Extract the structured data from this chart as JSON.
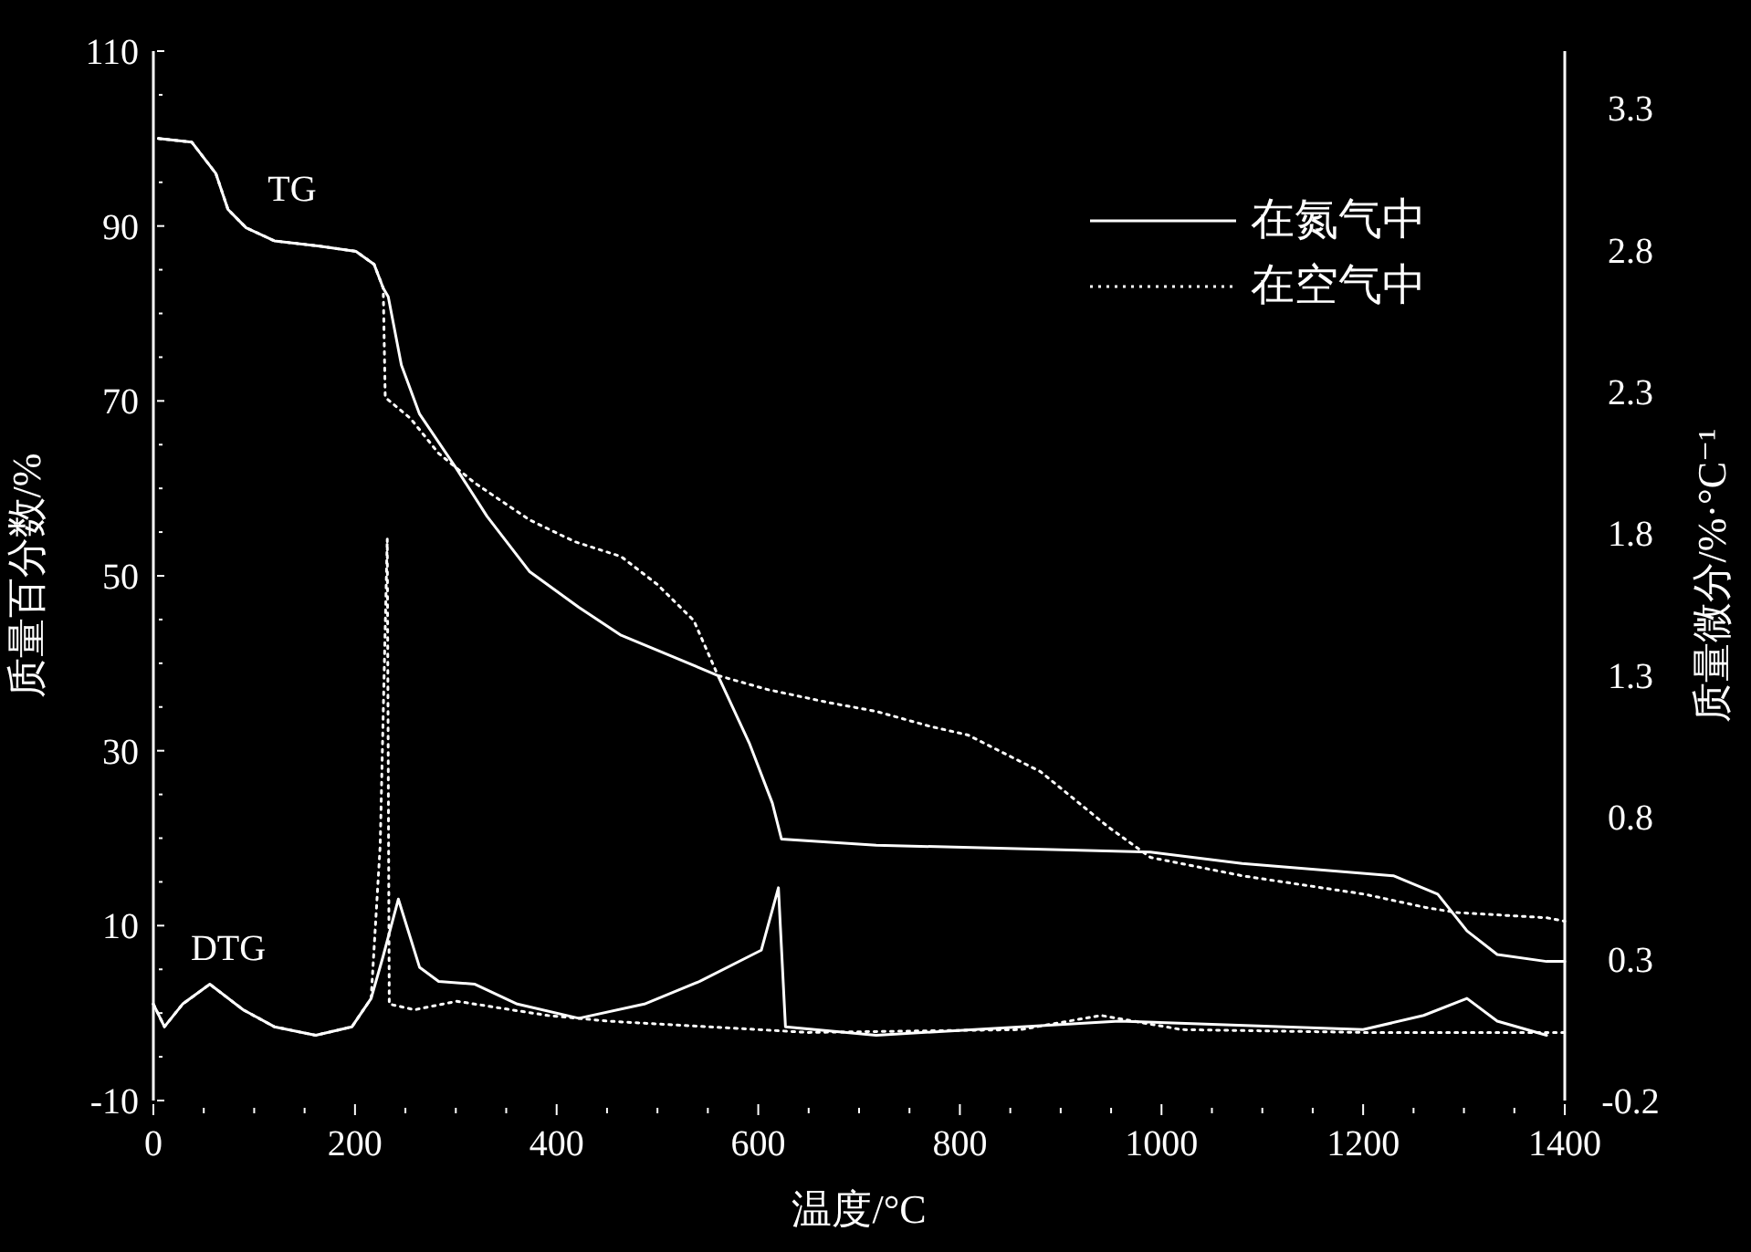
{
  "chart_data": {
    "type": "line",
    "xlabel": "温度/°C",
    "ylabel": "质量百分数/%",
    "y2label": "质量微分/%·°C⁻¹",
    "xlim": [
      0,
      1400
    ],
    "xticks": [
      0,
      200,
      400,
      600,
      800,
      1000,
      1200,
      1400
    ],
    "ylim": [
      -10,
      110
    ],
    "yticks": [
      -10,
      10,
      30,
      50,
      70,
      90,
      110
    ],
    "y2lim": [
      -0.2,
      3.5
    ],
    "y2ticks": [
      -0.2,
      0.3,
      0.8,
      1.3,
      1.8,
      2.3,
      2.8,
      3.3
    ],
    "legend": "top right",
    "annotations": [
      "TG",
      "DTG"
    ],
    "series": [
      {
        "name": "在氮气中",
        "color": "#ffffff",
        "line_style": "solid",
        "x": [
          5,
          38,
          62,
          74,
          92,
          120,
          165,
          201,
          219,
          228,
          233,
          246,
          264,
          301,
          331,
          373,
          422,
          464,
          560,
          591,
          614,
          623,
          717,
          989,
          1080,
          1230,
          1274,
          1303,
          1333,
          1382,
          1400
        ],
        "values": [
          100,
          99.6,
          96,
          91.9,
          89.8,
          88.3,
          87.7,
          87.1,
          85.6,
          82.9,
          81.9,
          74.1,
          68.5,
          62.2,
          56.8,
          50.5,
          46.4,
          43.2,
          38.6,
          30.9,
          24,
          19.9,
          19.2,
          18.4,
          17.1,
          15.7,
          13.6,
          9.4,
          6.7,
          5.9,
          5.9
        ]
      },
      {
        "name": "在空气中",
        "color": "#ffffff",
        "line_style": "dotted",
        "x": [
          5,
          38,
          62,
          74,
          92,
          120,
          165,
          201,
          219,
          228,
          230,
          255,
          283,
          319,
          373,
          418,
          464,
          500,
          536,
          560,
          609,
          670,
          717,
          770,
          808,
          880,
          947,
          989,
          1080,
          1201,
          1261,
          1292,
          1382,
          1400
        ],
        "values": [
          100,
          99.6,
          96,
          91.9,
          89.8,
          88.3,
          87.7,
          87.1,
          85.6,
          82.9,
          70.4,
          68,
          64,
          60.6,
          56.4,
          53.9,
          52.2,
          49,
          44.9,
          38.6,
          37,
          35.5,
          34.5,
          32.8,
          31.8,
          27.6,
          21.3,
          17.8,
          15.7,
          13.6,
          12.1,
          11.5,
          10.9,
          10.5
        ]
      },
      {
        "color": "#ffffff",
        "line_style": "solid",
        "axis": "y2",
        "x": [
          0,
          11,
          29,
          56,
          89,
          120,
          161,
          197,
          216,
          228,
          243,
          264,
          283,
          319,
          361,
          422,
          487,
          542,
          603,
          620,
          627,
          717,
          958,
          1200,
          1260,
          1303,
          1333,
          1382
        ],
        "values": [
          0.14,
          0.06,
          0.14,
          0.21,
          0.12,
          0.06,
          0.03,
          0.06,
          0.16,
          0.31,
          0.51,
          0.27,
          0.22,
          0.21,
          0.14,
          0.09,
          0.14,
          0.22,
          0.33,
          0.55,
          0.06,
          0.03,
          0.08,
          0.05,
          0.1,
          0.16,
          0.08,
          0.03
        ]
      },
      {
        "color": "#ffffff",
        "line_style": "dotted",
        "axis": "y2",
        "x": [
          0,
          11,
          29,
          56,
          89,
          120,
          161,
          197,
          216,
          225,
          232,
          234,
          259,
          301,
          391,
          451,
          549,
          650,
          860,
          940,
          1020,
          1200,
          1400
        ],
        "values": [
          0.14,
          0.06,
          0.14,
          0.21,
          0.12,
          0.06,
          0.03,
          0.06,
          0.16,
          0.7,
          1.78,
          0.14,
          0.12,
          0.15,
          0.1,
          0.08,
          0.06,
          0.04,
          0.05,
          0.1,
          0.05,
          0.04,
          0.04
        ]
      }
    ]
  }
}
